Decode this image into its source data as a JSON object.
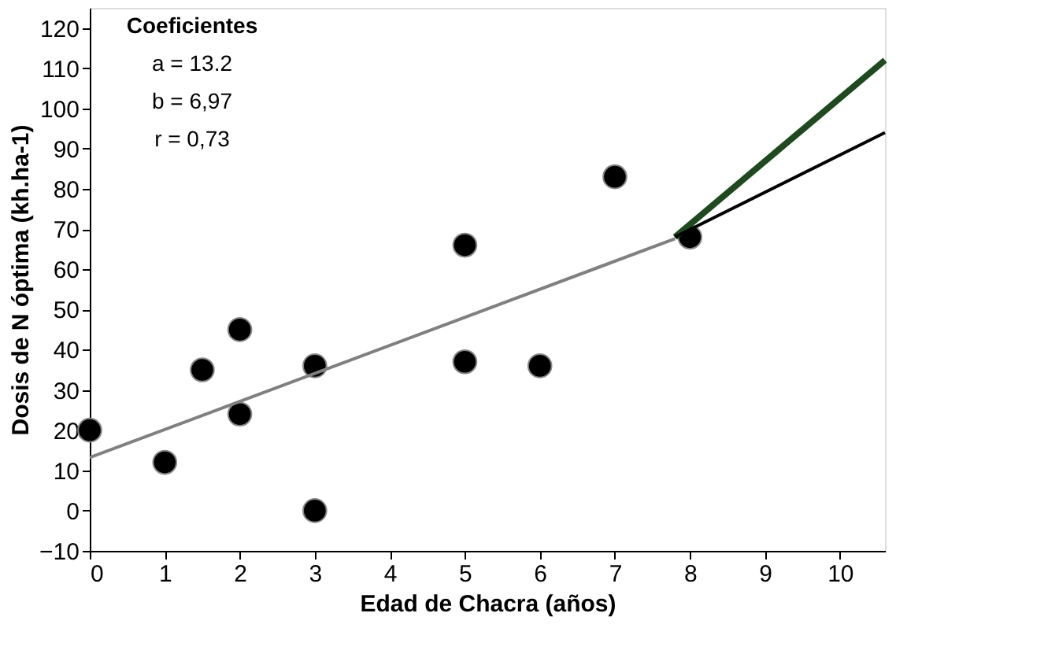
{
  "chart_data": {
    "type": "scatter",
    "xlabel": "Edad de Chacra (años)",
    "ylabel": "Dosis de N óptima (kh.ha-1)",
    "annotations": [
      "Coeficientes",
      "a = 13.2",
      "b = 6,97",
      "r = 0,73"
    ],
    "xlim": [
      0,
      10.6
    ],
    "xticks": [
      0,
      1,
      2,
      3,
      4,
      5,
      6,
      7,
      8,
      9,
      10
    ],
    "ylim": [
      -10,
      125
    ],
    "yticks": [
      -10,
      0,
      10,
      20,
      30,
      40,
      50,
      60,
      70,
      80,
      90,
      100,
      110,
      120
    ],
    "grid": false,
    "legend": false,
    "series": [
      {
        "type": "scatter",
        "color": "#000000",
        "marker": "circle",
        "x": [
          0,
          1,
          1.5,
          2,
          2,
          3,
          3,
          5,
          5,
          6,
          7,
          8
        ],
        "values": [
          20,
          12,
          35,
          45,
          24,
          36,
          0,
          66,
          37,
          36,
          83,
          68
        ]
      },
      {
        "type": "line",
        "color": "#808080",
        "line_style": "solid",
        "x": [
          0,
          7.8
        ],
        "values": [
          13.2,
          67.6
        ]
      },
      {
        "type": "line",
        "color": "#1f4a1f",
        "line_style": "solid",
        "x": [
          7.8,
          10.6
        ],
        "values": [
          68,
          112
        ]
      },
      {
        "type": "line",
        "color": "#000000",
        "line_style": "solid",
        "x": [
          7.8,
          10.6
        ],
        "values": [
          68,
          94
        ]
      }
    ]
  }
}
